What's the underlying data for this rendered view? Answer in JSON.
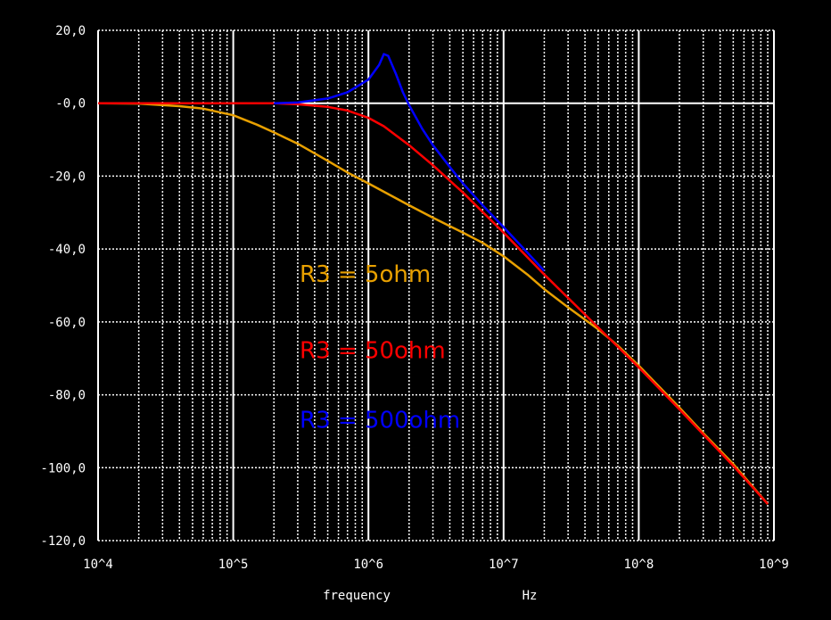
{
  "chart_data": {
    "type": "line",
    "title": "",
    "x_scale": "log",
    "xlim": [
      10000,
      1000000000
    ],
    "ylim": [
      -120,
      20
    ],
    "x_ticks": [
      {
        "value": 10000,
        "label": "10^4"
      },
      {
        "value": 100000,
        "label": "10^5"
      },
      {
        "value": 1000000,
        "label": "10^6"
      },
      {
        "value": 10000000,
        "label": "10^7"
      },
      {
        "value": 100000000,
        "label": "10^8"
      },
      {
        "value": 1000000000,
        "label": "10^9"
      }
    ],
    "y_ticks": [
      {
        "value": 20,
        "label": "20,0"
      },
      {
        "value": 0,
        "label": "-0,0"
      },
      {
        "value": -20,
        "label": "-20,0"
      },
      {
        "value": -40,
        "label": "-40,0"
      },
      {
        "value": -60,
        "label": "-60,0"
      },
      {
        "value": -80,
        "label": "-80,0"
      },
      {
        "value": -100,
        "label": "-100,0"
      },
      {
        "value": -120,
        "label": "-120,0"
      }
    ],
    "xlabel": "frequency",
    "xunit": "Hz",
    "grid": true,
    "background": "#000000",
    "grid_color": "#ffffff",
    "series": [
      {
        "name": "R3 = 5ohm",
        "color": "#e8a000",
        "x": [
          10000,
          20000,
          40000,
          60000,
          100000,
          150000,
          200000,
          300000,
          500000,
          700000,
          1000000,
          2000000,
          3000000,
          5000000,
          7000000,
          10000000,
          15000000,
          20000000,
          30000000,
          50000000,
          70000000,
          100000000,
          200000000,
          300000000,
          500000000,
          900000000
        ],
        "y": [
          0,
          -0.1,
          -0.8,
          -1.5,
          -3.3,
          -5.9,
          -8,
          -11.1,
          -15.8,
          -19,
          -22,
          -28,
          -31.4,
          -35.5,
          -38.3,
          -42,
          -47,
          -51,
          -56,
          -62,
          -66.5,
          -72,
          -83.5,
          -90.5,
          -99,
          -110
        ]
      },
      {
        "name": "R3 = 50ohm",
        "color": "#ff0000",
        "x": [
          10000,
          100000,
          200000,
          300000,
          500000,
          700000,
          1000000,
          1300000,
          1600000,
          2000000,
          3000000,
          5000000,
          10000000,
          20000000,
          50000000,
          100000000,
          200000000,
          500000000,
          900000000
        ],
        "y": [
          0,
          0,
          0,
          -0.3,
          -1,
          -2,
          -4,
          -6.3,
          -8.8,
          -11.5,
          -17,
          -24.5,
          -35.5,
          -47,
          -61.5,
          -72.5,
          -84,
          -99.5,
          -110
        ]
      },
      {
        "name": "R3 = 500ohm",
        "color": "#0000ff",
        "x": [
          200000,
          300000,
          500000,
          700000,
          1000000,
          1200000,
          1300000,
          1400000,
          1600000,
          1800000,
          2000000,
          2500000,
          3000000,
          4000000,
          5000000,
          7000000,
          10000000,
          15000000,
          20000000
        ],
        "y": [
          0,
          0.2,
          1.3,
          3,
          6.5,
          10.5,
          13.5,
          13,
          8,
          3,
          -0.5,
          -7,
          -11.5,
          -17.5,
          -22,
          -28,
          -34,
          -41,
          -46
        ]
      }
    ],
    "legend_labels": [
      {
        "text": "R3 = 5ohm",
        "color": "#e8a000"
      },
      {
        "text": "R3 = 50ohm",
        "color": "#ff0000"
      },
      {
        "text": "R3 = 500ohm",
        "color": "#0000ff"
      }
    ]
  }
}
